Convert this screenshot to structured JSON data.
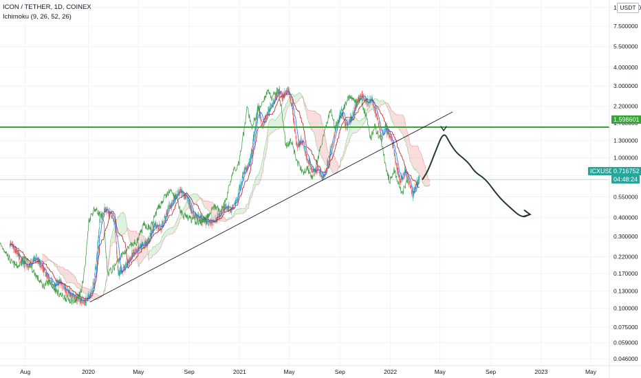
{
  "legend": {
    "symbol": "ICON / TETHER, 1D, COINEX",
    "indicator": "Ichimoku (9, 26, 52, 26)"
  },
  "price_axis": {
    "unit": "USDT",
    "current_symbol": "ICXUSDT",
    "current_price": "0.716752",
    "countdown": "04:48:24",
    "level_price": "1.598601"
  },
  "colors": {
    "background": "#ffffff",
    "candle_up": "#26a69a",
    "candle_down": "#ef5350",
    "tenkan": "#2962ff",
    "kijun": "#b71c1c",
    "chikou": "#43a047",
    "cloud_bull": "#a5d6a7",
    "cloud_bear": "#ef9a9a",
    "level_line": "#33a534",
    "trendline": "#131722",
    "drawing": "#1e3a2b"
  },
  "chart_data": {
    "type": "candlestick",
    "scale": "log",
    "ylim": [
      0.0415,
      11.2
    ],
    "xlim": [
      "2019-06-01",
      "2023-06-15"
    ],
    "y_ticks": [
      "10.000000",
      "7.500000",
      "5.500000",
      "4.000000",
      "3.000000",
      "2.200000",
      "1.700000",
      "1.300000",
      "1.000000",
      "0.760000",
      "0.550000",
      "0.400000",
      "0.300000",
      "0.220000",
      "0.170000",
      "0.130000",
      "0.100000",
      "0.075000",
      "0.059000",
      "0.046000"
    ],
    "y_tick_values": [
      10,
      7.5,
      5.5,
      4,
      3,
      2.2,
      1.7,
      1.3,
      1,
      0.76,
      0.55,
      0.4,
      0.3,
      0.22,
      0.17,
      0.13,
      0.1,
      0.075,
      0.059,
      0.046
    ],
    "x_ticks": [
      {
        "label": "Aug",
        "date": "2019-08-01"
      },
      {
        "label": "2020",
        "date": "2020-01-01"
      },
      {
        "label": "May",
        "date": "2020-05-01"
      },
      {
        "label": "Sep",
        "date": "2020-09-01"
      },
      {
        "label": "2021",
        "date": "2021-01-01"
      },
      {
        "label": "May",
        "date": "2021-05-01"
      },
      {
        "label": "Sep",
        "date": "2021-09-01"
      },
      {
        "label": "2022",
        "date": "2022-01-01"
      },
      {
        "label": "May",
        "date": "2022-05-01"
      },
      {
        "label": "Sep",
        "date": "2022-09-01"
      },
      {
        "label": "2023",
        "date": "2023-01-01"
      },
      {
        "label": "May",
        "date": "2023-05-01"
      }
    ],
    "price_series": [
      {
        "date": "2019-06-25",
        "close": 0.27
      },
      {
        "date": "2019-07-10",
        "close": 0.24
      },
      {
        "date": "2019-07-25",
        "close": 0.2
      },
      {
        "date": "2019-08-10",
        "close": 0.19
      },
      {
        "date": "2019-08-25",
        "close": 0.215
      },
      {
        "date": "2019-09-10",
        "close": 0.19
      },
      {
        "date": "2019-09-25",
        "close": 0.16
      },
      {
        "date": "2019-10-10",
        "close": 0.14
      },
      {
        "date": "2019-10-25",
        "close": 0.15
      },
      {
        "date": "2019-11-10",
        "close": 0.13
      },
      {
        "date": "2019-11-25",
        "close": 0.12
      },
      {
        "date": "2019-12-10",
        "close": 0.115
      },
      {
        "date": "2019-12-25",
        "close": 0.11
      },
      {
        "date": "2020-01-10",
        "close": 0.13
      },
      {
        "date": "2020-01-20",
        "close": 0.2
      },
      {
        "date": "2020-01-28",
        "close": 0.38
      },
      {
        "date": "2020-02-10",
        "close": 0.46
      },
      {
        "date": "2020-02-25",
        "close": 0.42
      },
      {
        "date": "2020-03-05",
        "close": 0.36
      },
      {
        "date": "2020-03-13",
        "close": 0.17
      },
      {
        "date": "2020-03-25",
        "close": 0.18
      },
      {
        "date": "2020-04-10",
        "close": 0.21
      },
      {
        "date": "2020-04-25",
        "close": 0.24
      },
      {
        "date": "2020-05-10",
        "close": 0.26
      },
      {
        "date": "2020-05-25",
        "close": 0.28
      },
      {
        "date": "2020-06-10",
        "close": 0.36
      },
      {
        "date": "2020-06-25",
        "close": 0.34
      },
      {
        "date": "2020-07-10",
        "close": 0.44
      },
      {
        "date": "2020-07-25",
        "close": 0.52
      },
      {
        "date": "2020-08-10",
        "close": 0.6
      },
      {
        "date": "2020-08-25",
        "close": 0.55
      },
      {
        "date": "2020-09-10",
        "close": 0.42
      },
      {
        "date": "2020-09-25",
        "close": 0.4
      },
      {
        "date": "2020-10-10",
        "close": 0.38
      },
      {
        "date": "2020-10-25",
        "close": 0.37
      },
      {
        "date": "2020-11-10",
        "close": 0.41
      },
      {
        "date": "2020-11-25",
        "close": 0.47
      },
      {
        "date": "2020-12-10",
        "close": 0.45
      },
      {
        "date": "2020-12-25",
        "close": 0.52
      },
      {
        "date": "2021-01-10",
        "close": 0.8
      },
      {
        "date": "2021-01-25",
        "close": 0.9
      },
      {
        "date": "2021-02-05",
        "close": 1.4
      },
      {
        "date": "2021-02-15",
        "close": 2.2
      },
      {
        "date": "2021-02-25",
        "close": 1.6
      },
      {
        "date": "2021-03-10",
        "close": 2.0
      },
      {
        "date": "2021-03-25",
        "close": 2.4
      },
      {
        "date": "2021-04-05",
        "close": 2.8
      },
      {
        "date": "2021-04-15",
        "close": 2.5
      },
      {
        "date": "2021-04-28",
        "close": 2.9
      },
      {
        "date": "2021-05-08",
        "close": 2.2
      },
      {
        "date": "2021-05-19",
        "close": 1.2
      },
      {
        "date": "2021-06-01",
        "close": 1.3
      },
      {
        "date": "2021-06-15",
        "close": 0.95
      },
      {
        "date": "2021-06-28",
        "close": 0.8
      },
      {
        "date": "2021-07-10",
        "close": 0.85
      },
      {
        "date": "2021-07-22",
        "close": 0.72
      },
      {
        "date": "2021-08-05",
        "close": 1.0
      },
      {
        "date": "2021-08-20",
        "close": 1.5
      },
      {
        "date": "2021-09-05",
        "close": 2.1
      },
      {
        "date": "2021-09-15",
        "close": 1.6
      },
      {
        "date": "2021-09-28",
        "close": 1.8
      },
      {
        "date": "2021-10-10",
        "close": 2.3
      },
      {
        "date": "2021-10-22",
        "close": 2.6
      },
      {
        "date": "2021-11-05",
        "close": 2.3
      },
      {
        "date": "2021-11-18",
        "close": 2.4
      },
      {
        "date": "2021-12-01",
        "close": 1.8
      },
      {
        "date": "2021-12-10",
        "close": 1.35
      },
      {
        "date": "2021-12-20",
        "close": 1.6
      },
      {
        "date": "2022-01-05",
        "close": 1.3
      },
      {
        "date": "2022-01-15",
        "close": 0.9
      },
      {
        "date": "2022-01-25",
        "close": 0.7
      },
      {
        "date": "2022-02-05",
        "close": 0.82
      },
      {
        "date": "2022-02-15",
        "close": 0.7
      },
      {
        "date": "2022-02-24",
        "close": 0.56
      },
      {
        "date": "2022-03-05",
        "close": 0.66
      },
      {
        "date": "2022-03-12",
        "close": 0.7168
      }
    ],
    "horizontal_level": 1.598601,
    "trendline": {
      "start": {
        "date": "2020-01-05",
        "price": 0.11
      },
      "end": {
        "date": "2022-06-01",
        "price": 2.02
      }
    },
    "projection_path": [
      {
        "date": "2022-03-20",
        "price": 0.72
      },
      {
        "date": "2022-04-02",
        "price": 0.82
      },
      {
        "date": "2022-04-20",
        "price": 1.1
      },
      {
        "date": "2022-05-10",
        "price": 1.5
      },
      {
        "date": "2022-05-25",
        "price": 1.25
      },
      {
        "date": "2022-06-10",
        "price": 1.08
      },
      {
        "date": "2022-06-25",
        "price": 1.0
      },
      {
        "date": "2022-07-10",
        "price": 0.92
      },
      {
        "date": "2022-07-25",
        "price": 0.8
      },
      {
        "date": "2022-08-20",
        "price": 0.72
      },
      {
        "date": "2022-09-20",
        "price": 0.55
      },
      {
        "date": "2022-10-20",
        "price": 0.46
      },
      {
        "date": "2022-11-15",
        "price": 0.4
      },
      {
        "date": "2022-12-05",
        "price": 0.42
      }
    ]
  }
}
